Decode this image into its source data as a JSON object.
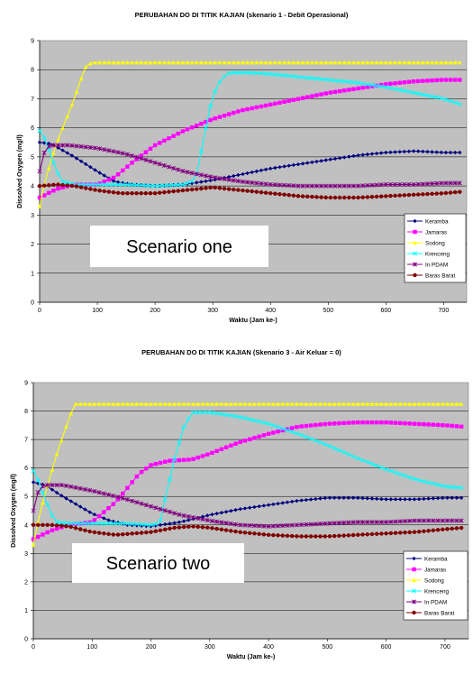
{
  "chart_data": [
    {
      "type": "line",
      "title": "PERUBAHAN DO DI TITIK KAJIAN (skenario 1 - Debit Operasional)",
      "xlabel": "Waktu (Jam ke-)",
      "ylabel": "Dissolved Oxygen (mg/l)",
      "xlim": [
        0,
        740
      ],
      "ylim": [
        0,
        9
      ],
      "xticks": [
        0,
        100,
        200,
        300,
        400,
        500,
        600,
        700
      ],
      "yticks": [
        0,
        1,
        2,
        3,
        4,
        5,
        6,
        7,
        8,
        9
      ],
      "grid": "horizontal",
      "legend_position": "right",
      "plot_background": "#c0c0c0",
      "annotation": "Scenario one",
      "series": [
        {
          "name": "Keramba",
          "color": "#000080",
          "marker": "diamond",
          "points": [
            [
              0,
              5.5
            ],
            [
              20,
              5.45
            ],
            [
              60,
              5.0
            ],
            [
              100,
              4.5
            ],
            [
              130,
              4.15
            ],
            [
              160,
              4.05
            ],
            [
              200,
              4.0
            ],
            [
              250,
              4.05
            ],
            [
              300,
              4.2
            ],
            [
              350,
              4.4
            ],
            [
              400,
              4.6
            ],
            [
              450,
              4.75
            ],
            [
              500,
              4.9
            ],
            [
              550,
              5.05
            ],
            [
              600,
              5.15
            ],
            [
              650,
              5.2
            ],
            [
              700,
              5.15
            ],
            [
              730,
              5.15
            ]
          ]
        },
        {
          "name": "Jamaras",
          "color": "#ff00ff",
          "marker": "square",
          "points": [
            [
              0,
              3.6
            ],
            [
              30,
              3.9
            ],
            [
              60,
              4.05
            ],
            [
              100,
              4.05
            ],
            [
              130,
              4.3
            ],
            [
              160,
              4.8
            ],
            [
              200,
              5.4
            ],
            [
              250,
              5.9
            ],
            [
              300,
              6.3
            ],
            [
              350,
              6.6
            ],
            [
              400,
              6.8
            ],
            [
              450,
              7.0
            ],
            [
              500,
              7.2
            ],
            [
              550,
              7.35
            ],
            [
              600,
              7.5
            ],
            [
              650,
              7.6
            ],
            [
              700,
              7.65
            ],
            [
              730,
              7.65
            ]
          ]
        },
        {
          "name": "Sodong",
          "color": "#ffff00",
          "marker": "triangle",
          "points": [
            [
              0,
              3.3
            ],
            [
              10,
              4.2
            ],
            [
              20,
              4.9
            ],
            [
              30,
              5.5
            ],
            [
              40,
              6.0
            ],
            [
              50,
              6.5
            ],
            [
              60,
              7.0
            ],
            [
              70,
              7.6
            ],
            [
              80,
              8.1
            ],
            [
              90,
              8.25
            ],
            [
              150,
              8.25
            ],
            [
              300,
              8.25
            ],
            [
              450,
              8.25
            ],
            [
              600,
              8.25
            ],
            [
              730,
              8.25
            ]
          ]
        },
        {
          "name": "Krenceng",
          "color": "#00ffff",
          "marker": "x",
          "points": [
            [
              0,
              5.9
            ],
            [
              10,
              5.6
            ],
            [
              20,
              5.0
            ],
            [
              30,
              4.5
            ],
            [
              40,
              4.15
            ],
            [
              60,
              4.05
            ],
            [
              100,
              4.05
            ],
            [
              150,
              4.05
            ],
            [
              200,
              4.0
            ],
            [
              250,
              4.05
            ],
            [
              270,
              4.2
            ],
            [
              280,
              5.2
            ],
            [
              290,
              6.2
            ],
            [
              300,
              7.1
            ],
            [
              315,
              7.7
            ],
            [
              330,
              7.9
            ],
            [
              360,
              7.9
            ],
            [
              400,
              7.85
            ],
            [
              450,
              7.75
            ],
            [
              500,
              7.65
            ],
            [
              550,
              7.55
            ],
            [
              600,
              7.4
            ],
            [
              650,
              7.2
            ],
            [
              700,
              7.0
            ],
            [
              730,
              6.8
            ]
          ]
        },
        {
          "name": "In PDAM",
          "color": "#800080",
          "marker": "star",
          "points": [
            [
              0,
              4.5
            ],
            [
              10,
              5.3
            ],
            [
              20,
              5.4
            ],
            [
              50,
              5.4
            ],
            [
              100,
              5.3
            ],
            [
              150,
              5.1
            ],
            [
              200,
              4.8
            ],
            [
              250,
              4.5
            ],
            [
              300,
              4.3
            ],
            [
              350,
              4.15
            ],
            [
              400,
              4.05
            ],
            [
              450,
              4.0
            ],
            [
              500,
              4.0
            ],
            [
              550,
              4.0
            ],
            [
              600,
              4.05
            ],
            [
              650,
              4.05
            ],
            [
              700,
              4.1
            ],
            [
              730,
              4.1
            ]
          ]
        },
        {
          "name": "Baras Barat",
          "color": "#800000",
          "marker": "circle",
          "points": [
            [
              0,
              4.0
            ],
            [
              30,
              4.05
            ],
            [
              60,
              4.0
            ],
            [
              100,
              3.85
            ],
            [
              140,
              3.75
            ],
            [
              200,
              3.75
            ],
            [
              250,
              3.85
            ],
            [
              300,
              3.95
            ],
            [
              350,
              3.85
            ],
            [
              400,
              3.75
            ],
            [
              450,
              3.65
            ],
            [
              500,
              3.6
            ],
            [
              550,
              3.6
            ],
            [
              600,
              3.65
            ],
            [
              650,
              3.7
            ],
            [
              700,
              3.75
            ],
            [
              730,
              3.8
            ]
          ]
        }
      ]
    },
    {
      "type": "line",
      "title": "PERUBAHAN DO DI TITIK KAJIAN (Skenario 3 - Air Keluar = 0)",
      "xlabel": "Waktu (Jam ke-)",
      "ylabel": "Dissolved Oxygen (mg/l)",
      "xlim": [
        0,
        740
      ],
      "ylim": [
        0,
        9
      ],
      "xticks": [
        0,
        100,
        200,
        300,
        400,
        500,
        600,
        700
      ],
      "yticks": [
        0,
        1,
        2,
        3,
        4,
        5,
        6,
        7,
        8,
        9
      ],
      "grid": "horizontal",
      "legend_position": "bottom-right",
      "plot_background": "#c0c0c0",
      "annotation": "Scenario two",
      "series": [
        {
          "name": "Keramba",
          "color": "#000080",
          "marker": "diamond",
          "points": [
            [
              0,
              5.5
            ],
            [
              20,
              5.4
            ],
            [
              50,
              5.0
            ],
            [
              100,
              4.4
            ],
            [
              130,
              4.15
            ],
            [
              160,
              4.0
            ],
            [
              200,
              3.95
            ],
            [
              250,
              4.1
            ],
            [
              300,
              4.35
            ],
            [
              350,
              4.55
            ],
            [
              400,
              4.7
            ],
            [
              450,
              4.85
            ],
            [
              500,
              4.95
            ],
            [
              550,
              4.95
            ],
            [
              600,
              4.9
            ],
            [
              650,
              4.9
            ],
            [
              700,
              4.95
            ],
            [
              730,
              4.95
            ]
          ]
        },
        {
          "name": "Jamaras",
          "color": "#ff00ff",
          "marker": "square",
          "points": [
            [
              0,
              3.5
            ],
            [
              30,
              3.8
            ],
            [
              60,
              4.0
            ],
            [
              100,
              4.1
            ],
            [
              140,
              4.8
            ],
            [
              180,
              5.8
            ],
            [
              200,
              6.1
            ],
            [
              230,
              6.25
            ],
            [
              270,
              6.3
            ],
            [
              300,
              6.5
            ],
            [
              350,
              6.9
            ],
            [
              400,
              7.2
            ],
            [
              450,
              7.45
            ],
            [
              500,
              7.55
            ],
            [
              550,
              7.6
            ],
            [
              600,
              7.6
            ],
            [
              650,
              7.55
            ],
            [
              700,
              7.5
            ],
            [
              730,
              7.45
            ]
          ]
        },
        {
          "name": "Sodong",
          "color": "#ffff00",
          "marker": "triangle",
          "points": [
            [
              0,
              3.3
            ],
            [
              10,
              4.3
            ],
            [
              20,
              5.1
            ],
            [
              30,
              5.8
            ],
            [
              40,
              6.5
            ],
            [
              50,
              7.1
            ],
            [
              60,
              7.7
            ],
            [
              70,
              8.25
            ],
            [
              150,
              8.25
            ],
            [
              300,
              8.25
            ],
            [
              450,
              8.25
            ],
            [
              600,
              8.25
            ],
            [
              730,
              8.25
            ]
          ]
        },
        {
          "name": "Krenceng",
          "color": "#00ffff",
          "marker": "x",
          "points": [
            [
              0,
              5.9
            ],
            [
              10,
              5.5
            ],
            [
              20,
              4.9
            ],
            [
              30,
              4.4
            ],
            [
              40,
              4.1
            ],
            [
              60,
              4.05
            ],
            [
              100,
              4.05
            ],
            [
              150,
              4.05
            ],
            [
              200,
              4.0
            ],
            [
              215,
              4.05
            ],
            [
              225,
              5.0
            ],
            [
              240,
              6.3
            ],
            [
              255,
              7.4
            ],
            [
              270,
              7.95
            ],
            [
              300,
              7.95
            ],
            [
              350,
              7.8
            ],
            [
              400,
              7.55
            ],
            [
              450,
              7.2
            ],
            [
              500,
              6.8
            ],
            [
              550,
              6.35
            ],
            [
              600,
              5.95
            ],
            [
              650,
              5.6
            ],
            [
              700,
              5.35
            ],
            [
              730,
              5.3
            ]
          ]
        },
        {
          "name": "In PDAM",
          "color": "#800080",
          "marker": "star",
          "points": [
            [
              0,
              4.5
            ],
            [
              10,
              5.3
            ],
            [
              20,
              5.4
            ],
            [
              50,
              5.4
            ],
            [
              100,
              5.2
            ],
            [
              150,
              4.95
            ],
            [
              200,
              4.65
            ],
            [
              250,
              4.35
            ],
            [
              300,
              4.15
            ],
            [
              350,
              4.0
            ],
            [
              400,
              3.95
            ],
            [
              450,
              4.0
            ],
            [
              500,
              4.05
            ],
            [
              550,
              4.1
            ],
            [
              600,
              4.1
            ],
            [
              650,
              4.15
            ],
            [
              700,
              4.15
            ],
            [
              730,
              4.15
            ]
          ]
        },
        {
          "name": "Baras Barat",
          "color": "#800000",
          "marker": "circle",
          "points": [
            [
              0,
              4.0
            ],
            [
              30,
              4.0
            ],
            [
              60,
              3.95
            ],
            [
              100,
              3.75
            ],
            [
              140,
              3.65
            ],
            [
              200,
              3.75
            ],
            [
              240,
              3.9
            ],
            [
              270,
              3.95
            ],
            [
              300,
              3.9
            ],
            [
              350,
              3.75
            ],
            [
              400,
              3.65
            ],
            [
              450,
              3.6
            ],
            [
              500,
              3.6
            ],
            [
              550,
              3.65
            ],
            [
              600,
              3.7
            ],
            [
              650,
              3.75
            ],
            [
              700,
              3.85
            ],
            [
              730,
              3.9
            ]
          ]
        }
      ]
    }
  ]
}
